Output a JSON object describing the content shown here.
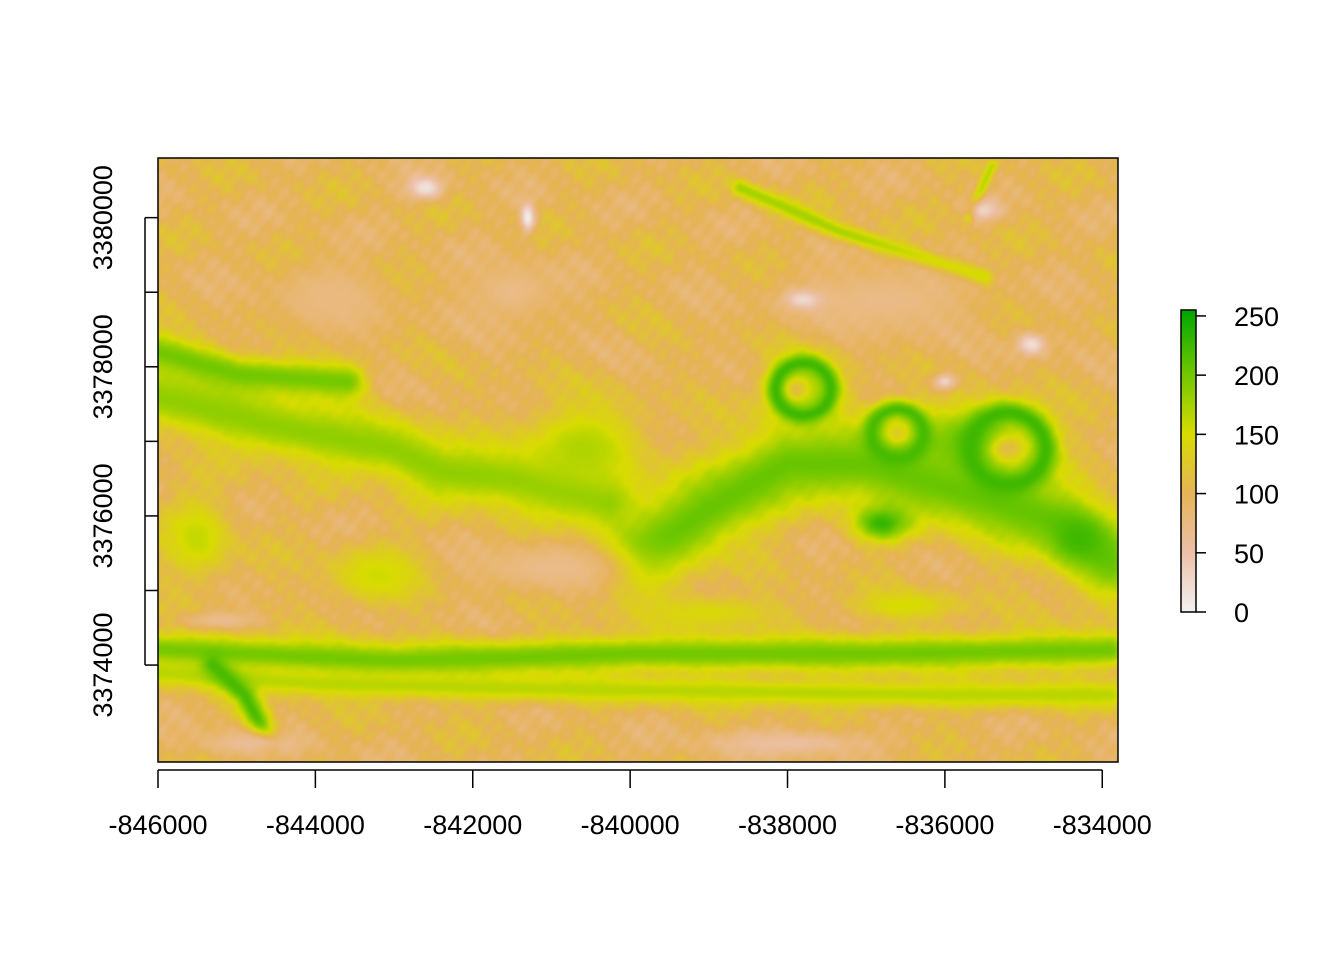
{
  "chart_data": {
    "type": "heatmap",
    "title": "",
    "xlabel": "",
    "ylabel": "",
    "x_range": [
      -846000,
      -833800
    ],
    "y_range": [
      3372700,
      3380800
    ],
    "x_ticks": [
      -846000,
      -844000,
      -842000,
      -840000,
      -838000,
      -836000,
      -834000
    ],
    "x_tick_labels": [
      "-846000",
      "-844000",
      "-842000",
      "-840000",
      "-838000",
      "-836000",
      "-834000"
    ],
    "y_ticks": [
      3374000,
      3375000,
      3376000,
      3377000,
      3378000,
      3379000,
      3380000
    ],
    "y_tick_labels": [
      "3374000",
      "",
      "3376000",
      "",
      "3378000",
      "",
      "3380000"
    ],
    "value_range": [
      0,
      255
    ],
    "colorbar": {
      "ticks": [
        0,
        50,
        100,
        150,
        200,
        250
      ],
      "tick_labels": [
        "0",
        "50",
        "100",
        "150",
        "200",
        "250"
      ],
      "stops": [
        {
          "value": 0,
          "color": "#f2f2f2"
        },
        {
          "value": 50,
          "color": "#ecc0a8"
        },
        {
          "value": 100,
          "color": "#e6b357"
        },
        {
          "value": 150,
          "color": "#d8dc00"
        },
        {
          "value": 200,
          "color": "#72c800"
        },
        {
          "value": 255,
          "color": "#00a600"
        }
      ]
    },
    "features": [
      {
        "kind": "base",
        "value": 100
      },
      {
        "kind": "band",
        "points": [
          [
            -846000,
            3377600
          ],
          [
            -844500,
            3377200
          ],
          [
            -843000,
            3376900
          ],
          [
            -842400,
            3376600
          ],
          [
            -841500,
            3376500
          ],
          [
            -840300,
            3376200
          ]
        ],
        "width": 300,
        "value": 185
      },
      {
        "kind": "band",
        "points": [
          [
            -846000,
            3378200
          ],
          [
            -845000,
            3377900
          ],
          [
            -843600,
            3377800
          ]
        ],
        "width": 180,
        "value": 200
      },
      {
        "kind": "band",
        "points": [
          [
            -839800,
            3375500
          ],
          [
            -839000,
            3376100
          ],
          [
            -838000,
            3376700
          ],
          [
            -837000,
            3376700
          ],
          [
            -836000,
            3376400
          ],
          [
            -834500,
            3375900
          ],
          [
            -833900,
            3375400
          ]
        ],
        "width": 380,
        "value": 205
      },
      {
        "kind": "band",
        "points": [
          [
            -846000,
            3374200
          ],
          [
            -843000,
            3374050
          ],
          [
            -840000,
            3374150
          ],
          [
            -837000,
            3374150
          ],
          [
            -833900,
            3374200
          ]
        ],
        "width": 170,
        "value": 200
      },
      {
        "kind": "band",
        "points": [
          [
            -846000,
            3373900
          ],
          [
            -844000,
            3373750
          ],
          [
            -842000,
            3373700
          ],
          [
            -839000,
            3373650
          ],
          [
            -836000,
            3373600
          ],
          [
            -833900,
            3373600
          ]
        ],
        "width": 130,
        "value": 165
      },
      {
        "kind": "band",
        "points": [
          [
            -845300,
            3374000
          ],
          [
            -844900,
            3373600
          ],
          [
            -844600,
            3373000
          ]
        ],
        "width": 110,
        "value": 220
      },
      {
        "kind": "band",
        "points": [
          [
            -838600,
            3380400
          ],
          [
            -837300,
            3379800
          ],
          [
            -835500,
            3379200
          ]
        ],
        "width": 80,
        "value": 175
      },
      {
        "kind": "band",
        "points": [
          [
            -835400,
            3380700
          ],
          [
            -835700,
            3380000
          ]
        ],
        "width": 50,
        "value": 165
      },
      {
        "kind": "blob",
        "cx": -840600,
        "cy": 3376900,
        "rx": 1000,
        "ry": 750,
        "value": 170
      },
      {
        "kind": "blob",
        "cx": -837800,
        "cy": 3377700,
        "rx": 650,
        "ry": 620,
        "value": 180
      },
      {
        "kind": "blob",
        "cx": -835700,
        "cy": 3377000,
        "rx": 1100,
        "ry": 600,
        "value": 200
      },
      {
        "kind": "blob",
        "cx": -834300,
        "cy": 3375700,
        "rx": 450,
        "ry": 400,
        "value": 225
      },
      {
        "kind": "blob",
        "cx": -836800,
        "cy": 3375900,
        "rx": 450,
        "ry": 300,
        "value": 230
      },
      {
        "kind": "blob",
        "cx": -845500,
        "cy": 3375700,
        "rx": 550,
        "ry": 700,
        "value": 160
      },
      {
        "kind": "blob",
        "cx": -843200,
        "cy": 3375200,
        "rx": 800,
        "ry": 500,
        "value": 155
      },
      {
        "kind": "blob",
        "cx": -839000,
        "cy": 3374700,
        "rx": 1200,
        "ry": 300,
        "value": 145
      },
      {
        "kind": "blob",
        "cx": -836500,
        "cy": 3374800,
        "rx": 900,
        "ry": 250,
        "value": 150
      },
      {
        "kind": "blob",
        "cx": -843800,
        "cy": 3378900,
        "rx": 900,
        "ry": 600,
        "value": 75
      },
      {
        "kind": "blob",
        "cx": -841500,
        "cy": 3379000,
        "rx": 700,
        "ry": 500,
        "value": 70
      },
      {
        "kind": "blob",
        "cx": -836800,
        "cy": 3378900,
        "rx": 1500,
        "ry": 600,
        "value": 70
      },
      {
        "kind": "blob",
        "cx": -841000,
        "cy": 3375300,
        "rx": 1300,
        "ry": 400,
        "value": 70
      },
      {
        "kind": "blob",
        "cx": -845200,
        "cy": 3374600,
        "rx": 650,
        "ry": 150,
        "value": 65
      },
      {
        "kind": "blob",
        "cx": -838000,
        "cy": 3372950,
        "rx": 1400,
        "ry": 220,
        "value": 55
      },
      {
        "kind": "blob",
        "cx": -844800,
        "cy": 3372950,
        "rx": 900,
        "ry": 220,
        "value": 60
      },
      {
        "kind": "blob",
        "cx": -842600,
        "cy": 3380400,
        "rx": 300,
        "ry": 200,
        "value": 15
      },
      {
        "kind": "blob",
        "cx": -841300,
        "cy": 3380000,
        "rx": 120,
        "ry": 260,
        "value": 5
      },
      {
        "kind": "blob",
        "cx": -834900,
        "cy": 3378300,
        "rx": 250,
        "ry": 200,
        "value": 20
      },
      {
        "kind": "blob",
        "cx": -836000,
        "cy": 3377800,
        "rx": 200,
        "ry": 150,
        "value": 30
      },
      {
        "kind": "blob",
        "cx": -837800,
        "cy": 3378900,
        "rx": 300,
        "ry": 160,
        "value": 25
      },
      {
        "kind": "blob",
        "cx": -835500,
        "cy": 3380100,
        "rx": 250,
        "ry": 180,
        "value": 30
      },
      {
        "kind": "blob",
        "cx": -837900,
        "cy": 3377700,
        "rx": 230,
        "ry": 200,
        "value": 110
      },
      {
        "kind": "blob",
        "cx": -836600,
        "cy": 3377100,
        "rx": 200,
        "ry": 180,
        "value": 130
      },
      {
        "kind": "blob",
        "cx": -835200,
        "cy": 3376900,
        "rx": 280,
        "ry": 220,
        "value": 110
      },
      {
        "kind": "ring",
        "cx": -837800,
        "cy": 3377700,
        "r": 350,
        "width": 90,
        "value": 225
      },
      {
        "kind": "ring",
        "cx": -836600,
        "cy": 3377100,
        "r": 330,
        "width": 100,
        "value": 220
      },
      {
        "kind": "ring",
        "cx": -835200,
        "cy": 3376900,
        "r": 480,
        "width": 130,
        "value": 225
      }
    ]
  }
}
